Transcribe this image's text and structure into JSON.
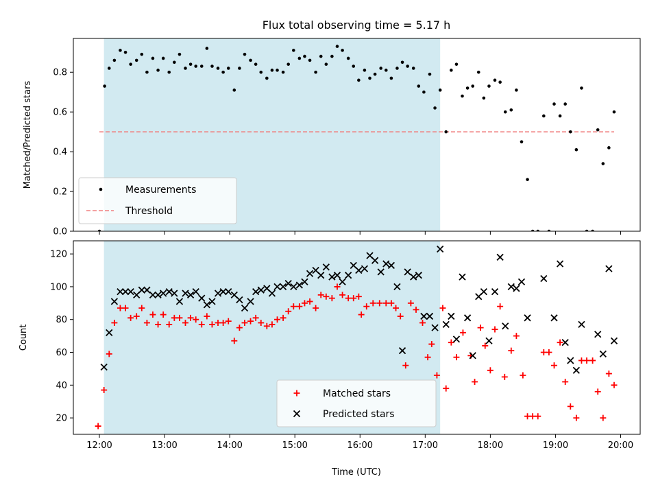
{
  "chart_data": {
    "title": "Flux total observing time = 5.17 h",
    "shared_x": {
      "label": "Time (UTC)",
      "ticks": [
        "12:00",
        "13:00",
        "14:00",
        "15:00",
        "16:00",
        "17:00",
        "18:00",
        "19:00",
        "20:00"
      ],
      "range_hours": [
        11.6,
        20.3
      ],
      "shaded_interval_hours": [
        12.07,
        17.23
      ]
    },
    "colors": {
      "measurements": "#000000",
      "threshold": "#f08080",
      "matched": "#ff0000",
      "predicted": "#000000",
      "shade": "#add8e6"
    },
    "panels": [
      {
        "type": "scatter",
        "ylabel": "Matched/Predicted stars",
        "ylim": [
          0,
          0.97
        ],
        "yticks": [
          "0.0",
          "0.2",
          "0.4",
          "0.6",
          "0.8"
        ],
        "legend": {
          "placement": "lower-left",
          "measurements_label": "Measurements",
          "threshold_label": "Threshold"
        },
        "threshold": {
          "value": 0.5,
          "x_range": [
            12.0,
            19.9
          ]
        },
        "measurements": [
          [
            12.0,
            0.0
          ],
          [
            12.08,
            0.73
          ],
          [
            12.15,
            0.82
          ],
          [
            12.23,
            0.86
          ],
          [
            12.32,
            0.91
          ],
          [
            12.4,
            0.9
          ],
          [
            12.48,
            0.84
          ],
          [
            12.57,
            0.86
          ],
          [
            12.65,
            0.89
          ],
          [
            12.73,
            0.8
          ],
          [
            12.82,
            0.87
          ],
          [
            12.9,
            0.81
          ],
          [
            12.98,
            0.87
          ],
          [
            13.07,
            0.8
          ],
          [
            13.15,
            0.85
          ],
          [
            13.23,
            0.89
          ],
          [
            13.32,
            0.82
          ],
          [
            13.4,
            0.84
          ],
          [
            13.48,
            0.83
          ],
          [
            13.57,
            0.83
          ],
          [
            13.65,
            0.92
          ],
          [
            13.73,
            0.83
          ],
          [
            13.82,
            0.82
          ],
          [
            13.9,
            0.8
          ],
          [
            13.98,
            0.82
          ],
          [
            14.07,
            0.71
          ],
          [
            14.15,
            0.82
          ],
          [
            14.23,
            0.89
          ],
          [
            14.32,
            0.86
          ],
          [
            14.4,
            0.84
          ],
          [
            14.48,
            0.8
          ],
          [
            14.57,
            0.77
          ],
          [
            14.65,
            0.81
          ],
          [
            14.73,
            0.81
          ],
          [
            14.82,
            0.8
          ],
          [
            14.9,
            0.84
          ],
          [
            14.98,
            0.91
          ],
          [
            15.07,
            0.87
          ],
          [
            15.15,
            0.88
          ],
          [
            15.23,
            0.86
          ],
          [
            15.32,
            0.8
          ],
          [
            15.4,
            0.88
          ],
          [
            15.48,
            0.84
          ],
          [
            15.57,
            0.88
          ],
          [
            15.65,
            0.93
          ],
          [
            15.73,
            0.91
          ],
          [
            15.82,
            0.87
          ],
          [
            15.9,
            0.83
          ],
          [
            15.98,
            0.76
          ],
          [
            16.07,
            0.81
          ],
          [
            16.15,
            0.77
          ],
          [
            16.23,
            0.79
          ],
          [
            16.32,
            0.82
          ],
          [
            16.4,
            0.81
          ],
          [
            16.48,
            0.77
          ],
          [
            16.57,
            0.82
          ],
          [
            16.65,
            0.85
          ],
          [
            16.73,
            0.83
          ],
          [
            16.82,
            0.82
          ],
          [
            16.9,
            0.73
          ],
          [
            16.98,
            0.7
          ],
          [
            17.07,
            0.79
          ],
          [
            17.15,
            0.62
          ],
          [
            17.23,
            0.71
          ],
          [
            17.32,
            0.5
          ],
          [
            17.4,
            0.81
          ],
          [
            17.48,
            0.84
          ],
          [
            17.57,
            0.68
          ],
          [
            17.65,
            0.72
          ],
          [
            17.73,
            0.73
          ],
          [
            17.82,
            0.8
          ],
          [
            17.9,
            0.67
          ],
          [
            17.98,
            0.73
          ],
          [
            18.07,
            0.76
          ],
          [
            18.15,
            0.75
          ],
          [
            18.23,
            0.6
          ],
          [
            18.32,
            0.61
          ],
          [
            18.4,
            0.71
          ],
          [
            18.48,
            0.45
          ],
          [
            18.57,
            0.26
          ],
          [
            18.65,
            0.0
          ],
          [
            18.73,
            0.0
          ],
          [
            18.9,
            0.0
          ],
          [
            18.82,
            0.58
          ],
          [
            18.98,
            0.64
          ],
          [
            19.07,
            0.58
          ],
          [
            19.15,
            0.64
          ],
          [
            19.23,
            0.5
          ],
          [
            19.32,
            0.41
          ],
          [
            19.4,
            0.72
          ],
          [
            19.48,
            0.0
          ],
          [
            19.57,
            0.0
          ],
          [
            19.65,
            0.51
          ],
          [
            19.73,
            0.34
          ],
          [
            19.82,
            0.42
          ],
          [
            19.9,
            0.6
          ]
        ]
      },
      {
        "type": "scatter",
        "ylabel": "Count",
        "ylim": [
          10,
          128
        ],
        "yticks": [
          "20",
          "40",
          "60",
          "80",
          "100",
          "120"
        ],
        "legend": {
          "placement": "lower-center",
          "matched_label": "Matched stars",
          "predicted_label": "Predicted stars"
        },
        "matched": [
          [
            11.98,
            15
          ],
          [
            12.07,
            37
          ],
          [
            12.15,
            59
          ],
          [
            12.23,
            78
          ],
          [
            12.32,
            87
          ],
          [
            12.4,
            87
          ],
          [
            12.48,
            81
          ],
          [
            12.57,
            82
          ],
          [
            12.65,
            87
          ],
          [
            12.73,
            78
          ],
          [
            12.82,
            83
          ],
          [
            12.9,
            77
          ],
          [
            12.98,
            83
          ],
          [
            13.07,
            77
          ],
          [
            13.15,
            81
          ],
          [
            13.23,
            81
          ],
          [
            13.32,
            78
          ],
          [
            13.4,
            81
          ],
          [
            13.48,
            80
          ],
          [
            13.57,
            77
          ],
          [
            13.65,
            82
          ],
          [
            13.73,
            77
          ],
          [
            13.82,
            78
          ],
          [
            13.9,
            78
          ],
          [
            13.98,
            79
          ],
          [
            14.07,
            67
          ],
          [
            14.15,
            75
          ],
          [
            14.23,
            78
          ],
          [
            14.32,
            79
          ],
          [
            14.4,
            81
          ],
          [
            14.48,
            78
          ],
          [
            14.57,
            76
          ],
          [
            14.65,
            77
          ],
          [
            14.73,
            80
          ],
          [
            14.82,
            81
          ],
          [
            14.9,
            85
          ],
          [
            14.98,
            88
          ],
          [
            15.07,
            88
          ],
          [
            15.15,
            90
          ],
          [
            15.23,
            91
          ],
          [
            15.32,
            87
          ],
          [
            15.4,
            95
          ],
          [
            15.48,
            94
          ],
          [
            15.57,
            93
          ],
          [
            15.65,
            100
          ],
          [
            15.73,
            95
          ],
          [
            15.82,
            93
          ],
          [
            15.9,
            93
          ],
          [
            15.98,
            94
          ],
          [
            16.02,
            83
          ],
          [
            16.1,
            88
          ],
          [
            16.2,
            90
          ],
          [
            16.3,
            90
          ],
          [
            16.4,
            90
          ],
          [
            16.48,
            90
          ],
          [
            16.55,
            87
          ],
          [
            16.62,
            82
          ],
          [
            16.7,
            52
          ],
          [
            16.78,
            90
          ],
          [
            16.86,
            86
          ],
          [
            16.96,
            78
          ],
          [
            17.04,
            57
          ],
          [
            17.1,
            65
          ],
          [
            17.18,
            46
          ],
          [
            17.27,
            87
          ],
          [
            17.32,
            38
          ],
          [
            17.4,
            66
          ],
          [
            17.48,
            57
          ],
          [
            17.58,
            72
          ],
          [
            17.7,
            58
          ],
          [
            17.76,
            42
          ],
          [
            17.85,
            75
          ],
          [
            17.92,
            64
          ],
          [
            18.0,
            49
          ],
          [
            18.07,
            74
          ],
          [
            18.15,
            88
          ],
          [
            18.22,
            45
          ],
          [
            18.32,
            61
          ],
          [
            18.4,
            70
          ],
          [
            18.5,
            46
          ],
          [
            18.57,
            21
          ],
          [
            18.65,
            21
          ],
          [
            18.73,
            21
          ],
          [
            18.82,
            60
          ],
          [
            18.9,
            60
          ],
          [
            18.98,
            52
          ],
          [
            19.07,
            66
          ],
          [
            19.15,
            42
          ],
          [
            19.23,
            27
          ],
          [
            19.32,
            20
          ],
          [
            19.4,
            55
          ],
          [
            19.48,
            55
          ],
          [
            19.57,
            55
          ],
          [
            19.65,
            36
          ],
          [
            19.73,
            20
          ],
          [
            19.82,
            47
          ],
          [
            19.9,
            40
          ]
        ],
        "predicted": [
          [
            12.07,
            51
          ],
          [
            12.15,
            72
          ],
          [
            12.23,
            91
          ],
          [
            12.32,
            97
          ],
          [
            12.4,
            97
          ],
          [
            12.48,
            97
          ],
          [
            12.57,
            95
          ],
          [
            12.65,
            98
          ],
          [
            12.73,
            98
          ],
          [
            12.82,
            95
          ],
          [
            12.9,
            95
          ],
          [
            12.98,
            96
          ],
          [
            13.07,
            97
          ],
          [
            13.15,
            96
          ],
          [
            13.23,
            91
          ],
          [
            13.32,
            96
          ],
          [
            13.4,
            95
          ],
          [
            13.48,
            97
          ],
          [
            13.57,
            93
          ],
          [
            13.65,
            89
          ],
          [
            13.73,
            91
          ],
          [
            13.82,
            96
          ],
          [
            13.9,
            97
          ],
          [
            13.98,
            97
          ],
          [
            14.07,
            95
          ],
          [
            14.15,
            92
          ],
          [
            14.23,
            87
          ],
          [
            14.32,
            91
          ],
          [
            14.4,
            97
          ],
          [
            14.48,
            98
          ],
          [
            14.57,
            99
          ],
          [
            14.65,
            96
          ],
          [
            14.73,
            100
          ],
          [
            14.82,
            100
          ],
          [
            14.9,
            102
          ],
          [
            14.98,
            100
          ],
          [
            15.07,
            101
          ],
          [
            15.15,
            103
          ],
          [
            15.23,
            108
          ],
          [
            15.32,
            110
          ],
          [
            15.4,
            107
          ],
          [
            15.48,
            112
          ],
          [
            15.57,
            106
          ],
          [
            15.65,
            107
          ],
          [
            15.73,
            103
          ],
          [
            15.82,
            107
          ],
          [
            15.9,
            113
          ],
          [
            15.98,
            110
          ],
          [
            16.07,
            111
          ],
          [
            16.15,
            119
          ],
          [
            16.23,
            116
          ],
          [
            16.32,
            109
          ],
          [
            16.4,
            114
          ],
          [
            16.48,
            113
          ],
          [
            16.57,
            100
          ],
          [
            16.65,
            61
          ],
          [
            16.73,
            109
          ],
          [
            16.82,
            106
          ],
          [
            16.9,
            107
          ],
          [
            16.98,
            82
          ],
          [
            17.07,
            82
          ],
          [
            17.15,
            75
          ],
          [
            17.23,
            123
          ],
          [
            17.32,
            77
          ],
          [
            17.4,
            82
          ],
          [
            17.48,
            68
          ],
          [
            17.57,
            106
          ],
          [
            17.65,
            81
          ],
          [
            17.73,
            58
          ],
          [
            17.82,
            94
          ],
          [
            17.9,
            97
          ],
          [
            17.98,
            67
          ],
          [
            18.07,
            97
          ],
          [
            18.15,
            118
          ],
          [
            18.23,
            76
          ],
          [
            18.32,
            100
          ],
          [
            18.4,
            99
          ],
          [
            18.48,
            103
          ],
          [
            18.57,
            81
          ],
          [
            18.82,
            105
          ],
          [
            18.98,
            81
          ],
          [
            19.07,
            114
          ],
          [
            19.15,
            66
          ],
          [
            19.23,
            55
          ],
          [
            19.32,
            49
          ],
          [
            19.4,
            77
          ],
          [
            19.65,
            71
          ],
          [
            19.73,
            59
          ],
          [
            19.82,
            111
          ],
          [
            19.9,
            67
          ]
        ]
      }
    ]
  }
}
